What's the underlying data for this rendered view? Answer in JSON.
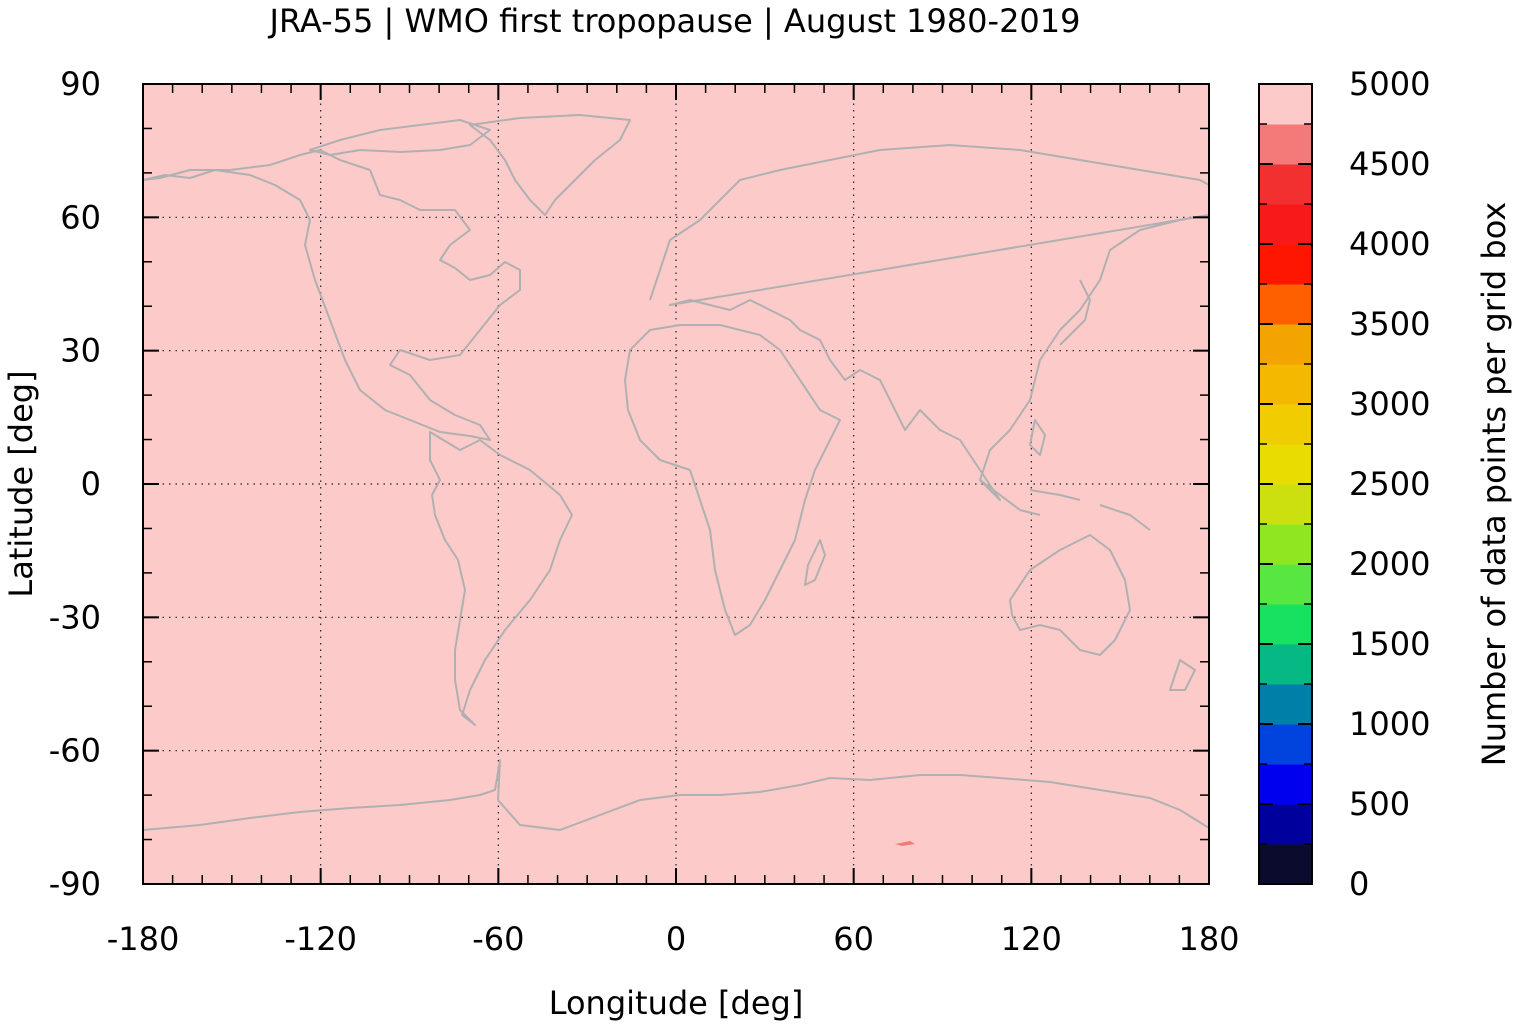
{
  "title": "JRA-55 | WMO first tropopause | August 1980-2019",
  "x_axis": {
    "label": "Longitude [deg]",
    "range": [
      -180,
      180
    ],
    "ticks": [
      "-180",
      "-120",
      "-60",
      "0",
      "60",
      "120",
      "180"
    ]
  },
  "y_axis": {
    "label": "Latitude [deg]",
    "range": [
      -90,
      90
    ],
    "ticks": [
      "90",
      "60",
      "30",
      "0",
      "-30",
      "-60",
      "-90"
    ]
  },
  "colorbar": {
    "label": "Number of data points per grid box",
    "range": [
      0,
      5000
    ],
    "ticks": [
      "5000",
      "4500",
      "4000",
      "3500",
      "3000",
      "2500",
      "2000",
      "1500",
      "1000",
      "500",
      "0"
    ],
    "colors": [
      "#0b0b2e",
      "#00009c",
      "#0000ee",
      "#0044dd",
      "#0080a8",
      "#06b884",
      "#18e060",
      "#58e640",
      "#90e620",
      "#cce010",
      "#e8dc00",
      "#f0cc00",
      "#f4b800",
      "#f4a400",
      "#fe6000",
      "#fe1600",
      "#f81a1a",
      "#f23030",
      "#f47a7a",
      "#fdcaca"
    ]
  },
  "map": {
    "background_value": 5000,
    "background_color": "#fdcaca",
    "coastline_color": "#b0b0b0",
    "grid": "dotted",
    "feature_color": "#f47a7a"
  },
  "chart_data": {
    "type": "heatmap",
    "title": "JRA-55 | WMO first tropopause | August 1980-2019",
    "xlabel": "Longitude [deg]",
    "ylabel": "Latitude [deg]",
    "xlim": [
      -180,
      180
    ],
    "ylim": [
      -90,
      90
    ],
    "colorbar_label": "Number of data points per grid box",
    "colorbar_range": [
      0,
      5000
    ],
    "field_value": 5000,
    "grid": true
  }
}
